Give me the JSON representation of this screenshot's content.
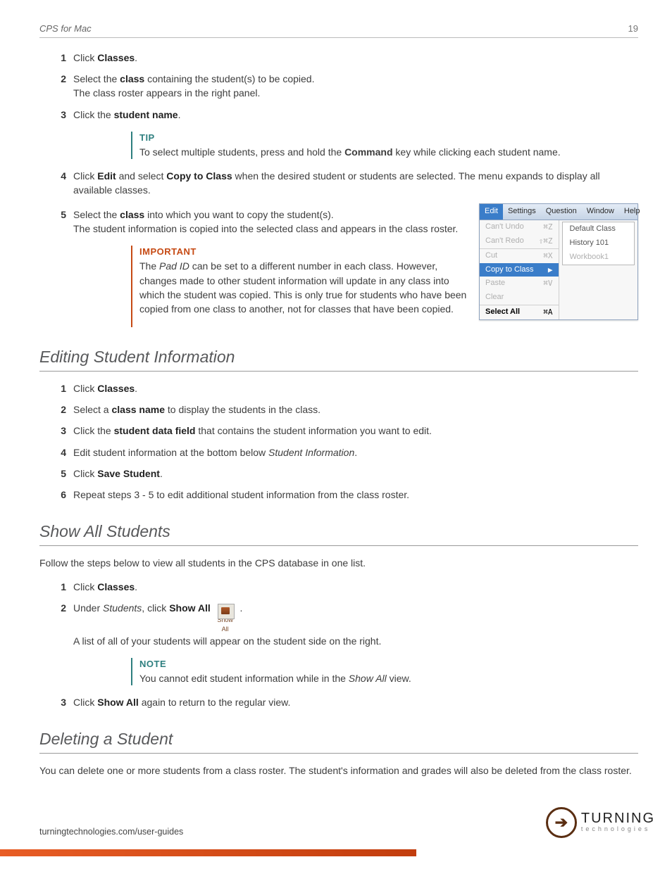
{
  "header": {
    "title": "CPS for Mac",
    "page": "19"
  },
  "copy": {
    "s1": {
      "pre": "Click ",
      "b": "Classes",
      "post": "."
    },
    "s2": {
      "pre": "Select the ",
      "b": "class",
      "post": " containing the student(s) to be copied.",
      "line2": "The class roster appears in the right panel."
    },
    "s3": {
      "pre": "Click the ",
      "b": "student name",
      "post": "."
    },
    "tip": {
      "label": "TIP",
      "pre": "To select multiple students, press and hold the ",
      "b": "Command",
      "post": " key while clicking each student name."
    },
    "s4": {
      "pre": "Click  ",
      "b1": "Edit",
      "mid": " and select ",
      "b2": "Copy to Class",
      "post": " when the desired student or students are selected. The menu expands to display all available classes."
    },
    "s5": {
      "pre": "Select the ",
      "b": "class",
      "post": " into which you want to copy the student(s).",
      "line2": "The student information is copied into the selected class and appears in the class roster."
    },
    "important": {
      "label": "IMPORTANT",
      "l1a": "The ",
      "l1i": "Pad ID",
      "l1b": " can be set to a different number in each class.",
      "l2": "However, changes made to other student information will update in any class into which the student was copied. This is only true for students who have been copied from one class to another, not for classes that have been copied."
    }
  },
  "menu": {
    "bar": [
      "Edit",
      "Settings",
      "Question",
      "Window",
      "Help"
    ],
    "rows": [
      {
        "label": "Can't Undo",
        "sc": "⌘Z",
        "dim": true
      },
      {
        "label": "Can't Redo",
        "sc": "⇧⌘Z",
        "dim": true
      },
      {
        "label": "Cut",
        "sc": "⌘X",
        "dim": true,
        "sep": true
      },
      {
        "label": "Copy to Class",
        "sc": "▶",
        "hl": true
      },
      {
        "label": "Paste",
        "sc": "⌘V",
        "dim": true
      },
      {
        "label": "Clear",
        "sc": "",
        "dim": true
      },
      {
        "label": "Select All",
        "sc": "⌘A",
        "bold": true,
        "sep": true
      }
    ],
    "sub": [
      "Default Class",
      "History 101",
      "Workbook1"
    ]
  },
  "editing": {
    "heading": "Editing Student Information",
    "s1": {
      "pre": "Click ",
      "b": "Classes",
      "post": "."
    },
    "s2": {
      "pre": "Select a ",
      "b": "class name",
      "post": " to display the students in the class."
    },
    "s3": {
      "pre": "Click the ",
      "b": "student data field",
      "post": " that contains the student information you want to edit."
    },
    "s4": {
      "pre": "Edit student information at the bottom below ",
      "i": "Student Information",
      "post": "."
    },
    "s5": {
      "pre": "Click ",
      "b": "Save Student",
      "post": "."
    },
    "s6": "Repeat steps 3 - 5 to edit additional student information from the class roster."
  },
  "showall": {
    "heading": "Show All Students",
    "intro": "Follow the steps below to view all students in the CPS database in one list.",
    "s1": {
      "pre": "Click ",
      "b": "Classes",
      "post": "."
    },
    "s2": {
      "pre": "Under ",
      "i": "Students",
      "mid": ", click ",
      "b": "Show All",
      "caption": "Show All",
      "post": " .",
      "line2": "A list of all of your students will appear on the student side on the right."
    },
    "note": {
      "label": "NOTE",
      "pre": "You cannot edit student information while in the ",
      "i": "Show All",
      "post": " view."
    },
    "s3": {
      "pre": "Click ",
      "b": "Show All",
      "post": " again to return to the regular view."
    }
  },
  "deleting": {
    "heading": "Deleting a Student",
    "intro": "You can delete one or more students from a class roster. The student's information and grades will also be deleted from the class roster."
  },
  "footer": {
    "url": "turningtechnologies.com/user-guides",
    "brand1": "TURNING",
    "brand2": "technologies"
  }
}
